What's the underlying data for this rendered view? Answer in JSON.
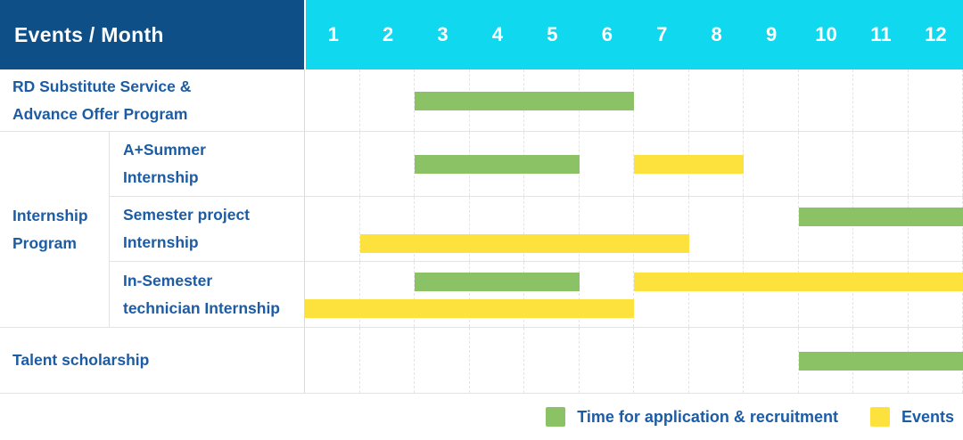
{
  "header": {
    "title": "Events / Month",
    "months": [
      "1",
      "2",
      "3",
      "4",
      "5",
      "6",
      "7",
      "8",
      "9",
      "10",
      "11",
      "12"
    ]
  },
  "colors": {
    "header_bg": "#0E4F87",
    "months_bg": "#10D8EE",
    "label_text": "#1C5CA5",
    "application_green": "#8BC266",
    "event_yellow": "#FDE23E"
  },
  "legend": {
    "items": [
      {
        "label": "Time for application & recruitment",
        "type": "application"
      },
      {
        "label": "Events",
        "type": "event"
      }
    ]
  },
  "chart_data": {
    "type": "gantt",
    "title": "Events / Month",
    "x_axis": {
      "label": "Month",
      "range": [
        1,
        12
      ]
    },
    "bar_types": {
      "application": "Time for application & recruitment",
      "event": "Events"
    },
    "rows": [
      {
        "group": null,
        "label": "RD Substitute Service &\nAdvance Offer Program",
        "lines": [
          [
            {
              "type": "application",
              "start": 3,
              "end": 6
            }
          ]
        ]
      },
      {
        "group": "Internship\nProgram",
        "label": "A+Summer\nInternship",
        "lines": [
          [
            {
              "type": "application",
              "start": 3,
              "end": 5
            },
            {
              "type": "event",
              "start": 7,
              "end": 8
            }
          ]
        ]
      },
      {
        "group": "Internship\nProgram",
        "label": "Semester project\nInternship",
        "lines": [
          [
            {
              "type": "application",
              "start": 10,
              "end": 12
            }
          ],
          [
            {
              "type": "event",
              "start": 2,
              "end": 7
            }
          ]
        ]
      },
      {
        "group": "Internship\nProgram",
        "label": "In-Semester\ntechnician Internship",
        "lines": [
          [
            {
              "type": "application",
              "start": 3,
              "end": 5
            },
            {
              "type": "event",
              "start": 7,
              "end": 12
            }
          ],
          [
            {
              "type": "event",
              "start": 1,
              "end": 6
            }
          ]
        ]
      },
      {
        "group": null,
        "label": "Talent scholarship",
        "lines": [
          [
            {
              "type": "application",
              "start": 10,
              "end": 12
            }
          ]
        ]
      }
    ]
  }
}
